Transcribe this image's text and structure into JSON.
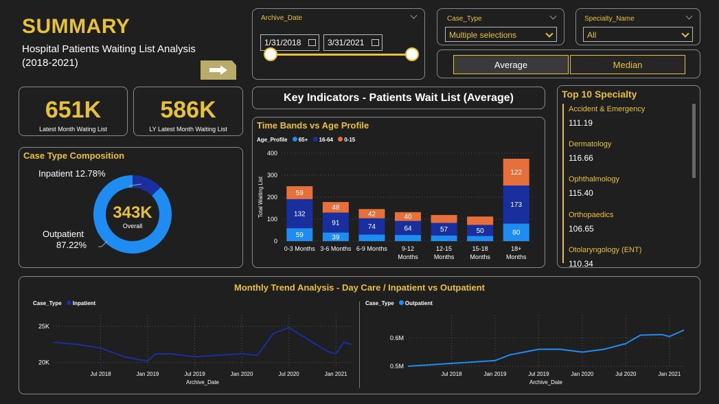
{
  "header": {
    "title": "SUMMARY",
    "subtitle": "Hospital Patients Waiting List Analysis (2018-2021)"
  },
  "slicers": {
    "archive_date": {
      "label": "Archive_Date",
      "start": "1/31/2018",
      "end": "3/31/2021"
    },
    "case_type": {
      "label": "Case_Type",
      "value": "Multiple selections"
    },
    "specialty": {
      "label": "Specialty_Name",
      "value": "All"
    },
    "toggle": {
      "average": "Average",
      "median": "Median"
    }
  },
  "kpis": [
    {
      "value": "651K",
      "label": "Latest Month Wating List"
    },
    {
      "value": "586K",
      "label": "LY Latest Month Waiting List"
    }
  ],
  "key_indicators_title": "Key Indicators - Patients Wait List (Average)",
  "case_type_composition": {
    "title": "Case Type Composition",
    "center_value": "343K",
    "center_label": "Overall",
    "inpatient_label": "Inpatient 12.78%",
    "outpatient_label": "Outpatient",
    "outpatient_pct": "87.22%",
    "colors": {
      "inpatient": "#1a2f9e",
      "outpatient": "#1f8cf2"
    }
  },
  "top_specialty": {
    "title": "Top 10 Specialty",
    "items": [
      {
        "name": "Accident & Emergency",
        "value": "111.19"
      },
      {
        "name": "Dermatology",
        "value": "116.66"
      },
      {
        "name": "Ophthalmology",
        "value": "115.40"
      },
      {
        "name": "Orthopaedics",
        "value": "106.65"
      },
      {
        "name": "Otolaryngology (ENT)",
        "value": "110.34"
      }
    ]
  },
  "chart_data": [
    {
      "type": "bar",
      "title": "Time Bands vs Age Profile",
      "legend_title": "Age_Profile",
      "ylabel": "Total Waiting List",
      "xlabel": "",
      "ylim": [
        0,
        400
      ],
      "yticks": [
        0,
        100,
        200,
        300,
        400
      ],
      "categories": [
        "0-3 Months",
        "3-6 Months",
        "6-9 Months",
        "9-12 Months",
        "12-15 Months",
        "15-18 Months",
        "18+ Months"
      ],
      "series": [
        {
          "name": "65+",
          "color": "#1f8cf2",
          "values": [
            59,
            39,
            30,
            28,
            26,
            24,
            80
          ],
          "labels": [
            "59",
            "39",
            "",
            "",
            "",
            "",
            "80"
          ]
        },
        {
          "name": "16-64",
          "color": "#1a2f9e",
          "values": [
            132,
            91,
            74,
            64,
            57,
            50,
            173
          ],
          "labels": [
            "132",
            "91",
            "74",
            "64",
            "57",
            "50",
            "173"
          ]
        },
        {
          "name": "0-15",
          "color": "#e6703c",
          "values": [
            59,
            48,
            42,
            40,
            36,
            38,
            122
          ],
          "labels": [
            "59",
            "48",
            "42",
            "40",
            "",
            "",
            "122"
          ]
        }
      ],
      "stacked": true,
      "legend": "top-left",
      "grid": true
    },
    {
      "type": "line",
      "title": "Monthly Trend Analysis - Day Care / Inpatient vs Outpatient",
      "legend_title": "Case_Type",
      "series_name": "Inpatient",
      "color": "#1a2f9e",
      "xlabel": "Archive_Date",
      "ylim": [
        19500,
        26500
      ],
      "yticks": [
        {
          "v": 20000,
          "label": "20K"
        },
        {
          "v": 25000,
          "label": "25K"
        }
      ],
      "xticks": [
        "Jul 2018",
        "Jan 2019",
        "Jul 2019",
        "Jan 2020",
        "Jul 2020",
        "Jan 2021"
      ],
      "x": [
        "2018-01",
        "2018-04",
        "2018-07",
        "2018-10",
        "2019-01",
        "2019-02",
        "2019-04",
        "2019-07",
        "2019-10",
        "2020-01",
        "2020-03",
        "2020-05",
        "2020-07",
        "2020-09",
        "2020-10",
        "2020-12",
        "2021-01",
        "2021-02",
        "2021-03"
      ],
      "values": [
        22800,
        22500,
        22000,
        20800,
        20200,
        21200,
        21200,
        20800,
        21000,
        21200,
        21000,
        24000,
        24800,
        23500,
        22800,
        21500,
        21200,
        22800,
        22500
      ],
      "grid": true
    },
    {
      "type": "line",
      "legend_title": "Case_Type",
      "series_name": "Outpatient",
      "color": "#1f8cf2",
      "xlabel": "Archive_Date",
      "ylim": [
        0.5,
        0.68
      ],
      "yticks": [
        {
          "v": 0.5,
          "label": "0.5M"
        },
        {
          "v": 0.6,
          "label": "0.6M"
        }
      ],
      "xticks": [
        "Jul 2018",
        "Jan 2019",
        "Jul 2019",
        "Jan 2020",
        "Jul 2020",
        "Jan 2021"
      ],
      "x": [
        "2018-01",
        "2018-04",
        "2018-07",
        "2018-10",
        "2019-01",
        "2019-03",
        "2019-07",
        "2019-10",
        "2020-01",
        "2020-04",
        "2020-07",
        "2020-09",
        "2020-12",
        "2021-01",
        "2021-03"
      ],
      "values": [
        0.5,
        0.505,
        0.51,
        0.515,
        0.52,
        0.54,
        0.56,
        0.56,
        0.55,
        0.56,
        0.58,
        0.61,
        0.612,
        0.605,
        0.628
      ],
      "grid": true
    }
  ]
}
